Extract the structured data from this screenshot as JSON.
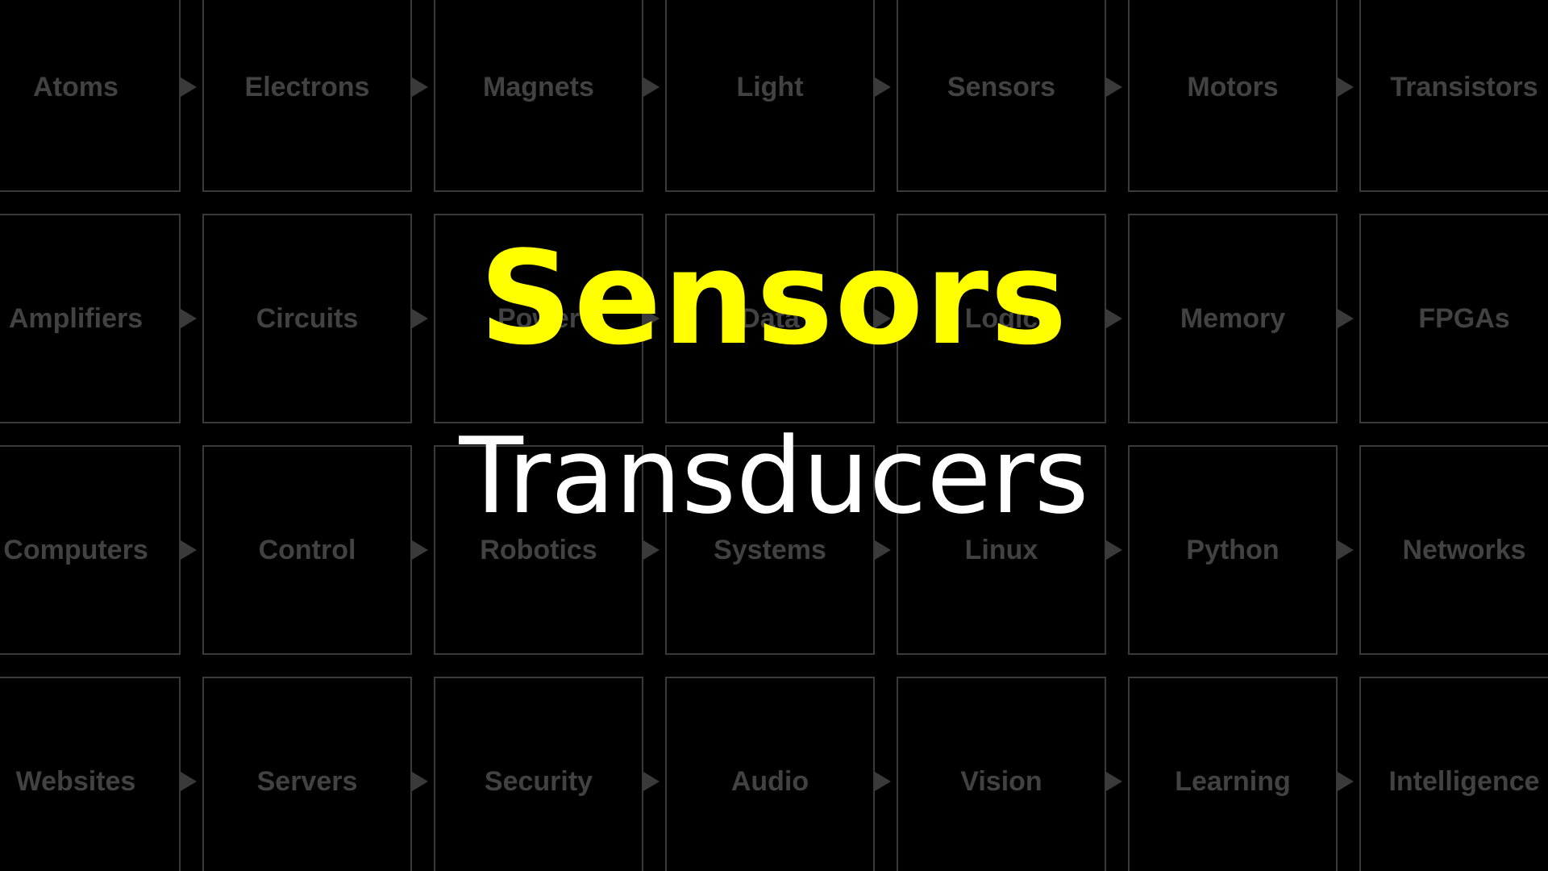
{
  "colors": {
    "background": "#000000",
    "cell_border": "#3a3a3a",
    "cell_text": "#424242",
    "title": "#ffff00",
    "subtitle": "#ffffff"
  },
  "grid": {
    "rows": [
      [
        "Atoms",
        "Electrons",
        "Magnets",
        "Light",
        "Sensors",
        "Motors",
        "Transistors"
      ],
      [
        "Amplifiers",
        "Circuits",
        "Power",
        "Data",
        "Logic",
        "Memory",
        "FPGAs"
      ],
      [
        "Computers",
        "Control",
        "Robotics",
        "Systems",
        "Linux",
        "Python",
        "Networks"
      ],
      [
        "Websites",
        "Servers",
        "Security",
        "Audio",
        "Vision",
        "Learning",
        "Intelligence"
      ]
    ]
  },
  "title": "Sensors",
  "subtitle": "Transducers"
}
